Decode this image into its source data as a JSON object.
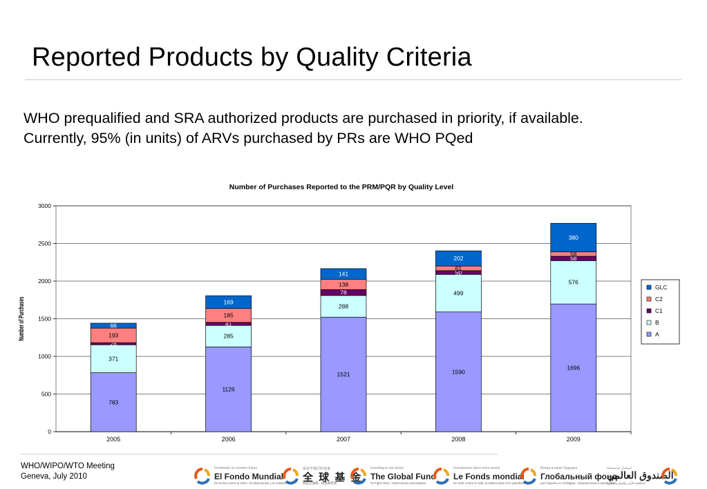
{
  "slide": {
    "title": "Reported Products by Quality Criteria",
    "body_line1": "WHO prequalified and SRA authorized products are purchased in priority, if available.",
    "body_line2": "Currently, 95% (in units) of ARVs purchased by PRs are WHO PQed"
  },
  "footer": {
    "meeting": "WHO/WIPO/WTO Meeting",
    "location": "Geneva, July 2010",
    "logos": [
      {
        "icon": "global-fund-icon",
        "tagline": "Invirtiendo en nuestro futuro",
        "name": "El Fondo Mundial",
        "sub": "De lucha contra el SIDA, la tuberculosis y la malaria"
      },
      {
        "icon": "global-fund-icon",
        "tagline": "投资于我们的未来",
        "name": "全 球 基 金",
        "sub": "抗击艾滋病、结核和疟疾"
      },
      {
        "icon": "global-fund-icon",
        "tagline": "Investing in our future",
        "name": "The Global Fund",
        "sub": "To Fight AIDS, Tuberculosis and Malaria"
      },
      {
        "icon": "global-fund-icon",
        "tagline": "Investissons dans notre avenir",
        "name": "Le Fonds mondial",
        "sub": "De lutte contre le sida, la tuberculose et le paludisme"
      },
      {
        "icon": "global-fund-icon",
        "tagline": "Вклад в наше будущее",
        "name": "Глобальный фонд",
        "sub": "для борьбы со СПИДом, туберкулезом и малярией"
      },
      {
        "icon": "global-fund-icon",
        "tagline": "استثمار لمستقبلنا",
        "name": "الصندوق العالمي",
        "sub": "لمكافحة الأيدز والسل والملاريا"
      }
    ]
  },
  "colors": {
    "A": "#9999ff",
    "B": "#ccffff",
    "C1": "#660066",
    "C2": "#ff8080",
    "GLC": "#0066cc",
    "plot_border": "#808080",
    "grid": "#000000"
  },
  "chart_data": {
    "type": "bar",
    "stacked": true,
    "title": "Number of Purchases Reported to the PRM/PQR by Quality Level",
    "xlabel": "",
    "ylabel": "Number of Purchases",
    "categories": [
      "2005",
      "2006",
      "2007",
      "2008",
      "2009"
    ],
    "ylim": [
      0,
      3000
    ],
    "yticks": [
      0,
      500,
      1000,
      1500,
      2000,
      2500,
      3000
    ],
    "grid": true,
    "legend_position": "right",
    "legend_order": [
      "GLC",
      "C2",
      "C1",
      "B",
      "A"
    ],
    "series": [
      {
        "name": "A",
        "values": [
          783,
          1126,
          1521,
          1590,
          1696
        ]
      },
      {
        "name": "B",
        "values": [
          371,
          285,
          288,
          499,
          576
        ]
      },
      {
        "name": "C1",
        "values": [
          28,
          41,
          78,
          50,
          58
        ]
      },
      {
        "name": "C2",
        "values": [
          193,
          185,
          138,
          61,
          58
        ]
      },
      {
        "name": "GLC",
        "values": [
          66,
          169,
          141,
          202,
          380
        ]
      }
    ]
  }
}
